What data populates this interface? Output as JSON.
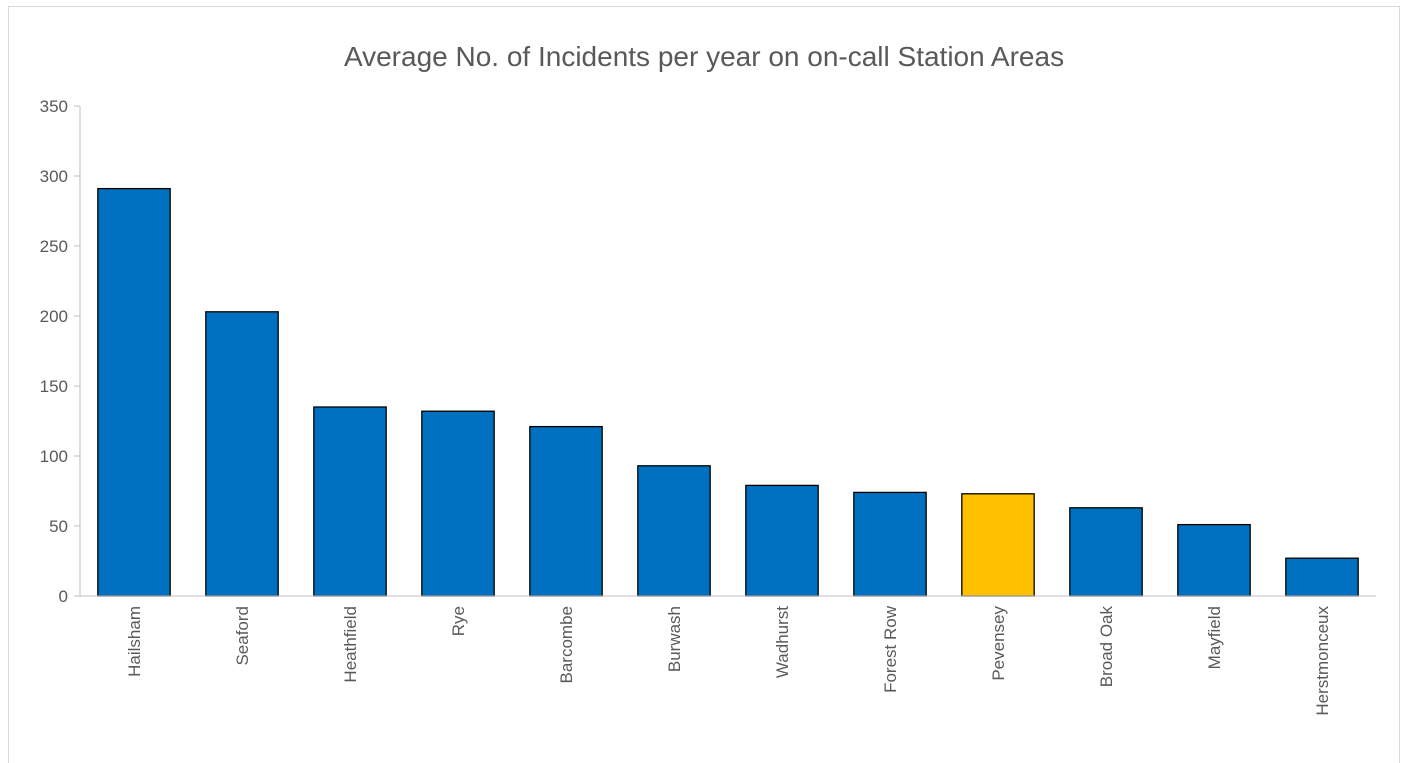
{
  "chart_data": {
    "type": "bar",
    "title": "Average No. of Incidents per year on on-call Station Areas",
    "xlabel": "",
    "ylabel": "",
    "ylim": [
      0,
      350
    ],
    "yticks": [
      "0",
      "50",
      "100",
      "150",
      "200",
      "250",
      "300",
      "350"
    ],
    "categories": [
      "Hailsham",
      "Seaford",
      "Heathfield",
      "Rye",
      "Barcombe",
      "Burwash",
      "Wadhurst",
      "Forest Row",
      "Pevensey",
      "Broad Oak",
      "Mayfield",
      "Herstmonceux"
    ],
    "values": [
      291,
      203,
      135,
      132,
      121,
      93,
      79,
      74,
      73,
      63,
      51,
      27
    ],
    "highlight_index": 8,
    "grid": false,
    "legend": "none"
  },
  "colors": {
    "bar": "#0070c0",
    "highlight": "#ffc000",
    "bar_stroke": "#000000",
    "axis": "#bfbfbf",
    "text": "#595959"
  }
}
